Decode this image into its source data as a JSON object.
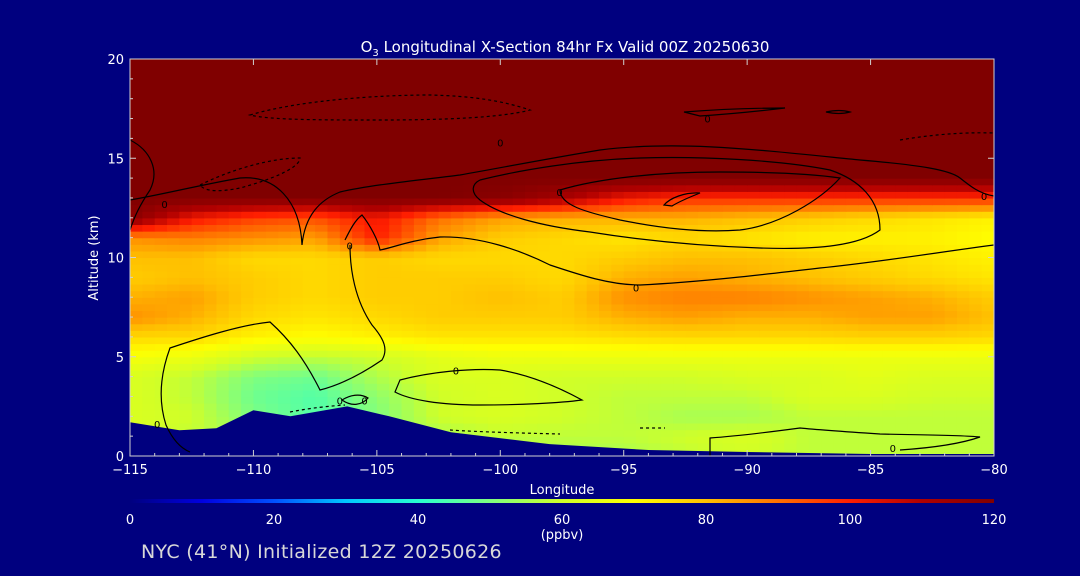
{
  "chart_data": {
    "type": "heatmap",
    "title_prefix": "O",
    "title_subscript": "3",
    "title_rest": " Longitudinal X-Section 84hr  Fx Valid 00Z 20250630",
    "xlabel": "Longitude",
    "ylabel": "Altitude (km)",
    "xlim": [
      -115,
      -80
    ],
    "ylim": [
      0,
      20
    ],
    "x_ticks": [
      -115,
      -110,
      -105,
      -100,
      -95,
      -90,
      -85,
      -80
    ],
    "x_tick_labels": [
      "−115",
      "−110",
      "−105",
      "−100",
      "−95",
      "−90",
      "−85",
      "−80"
    ],
    "y_ticks": [
      0,
      5,
      10,
      15,
      20
    ],
    "y_tick_labels": [
      "0",
      "5",
      "10",
      "15",
      "20"
    ],
    "grid": false,
    "colorbar": {
      "min": 0,
      "max": 120,
      "ticks": [
        0,
        20,
        40,
        60,
        80,
        100,
        120
      ],
      "tick_labels": [
        "0",
        "20",
        "40",
        "60",
        "80",
        "100",
        "120"
      ],
      "unit": "(ppbv)",
      "colors": [
        "#00007f",
        "#0000e0",
        "#0050ff",
        "#00c8ff",
        "#28ffd0",
        "#7fff7f",
        "#d0ff28",
        "#ffff00",
        "#ffc000",
        "#ff7000",
        "#ff1e00",
        "#b00000",
        "#800000"
      ]
    },
    "contour_labels": [
      {
        "text": "0",
        "x": -113.6,
        "y": 12.7
      },
      {
        "text": "0",
        "x": -113.9,
        "y": 1.6
      },
      {
        "text": "0",
        "x": -106.1,
        "y": 10.6
      },
      {
        "text": "0",
        "x": -106.5,
        "y": 2.8
      },
      {
        "text": "0",
        "x": -105.5,
        "y": 2.8
      },
      {
        "text": "0",
        "x": -101.8,
        "y": 4.3
      },
      {
        "text": "0",
        "x": -100.0,
        "y": 15.8
      },
      {
        "text": "0",
        "x": -97.6,
        "y": 13.3
      },
      {
        "text": "0",
        "x": -94.5,
        "y": 8.5
      },
      {
        "text": "0",
        "x": -91.6,
        "y": 17.0
      },
      {
        "text": "0",
        "x": -84.1,
        "y": 0.4
      },
      {
        "text": "0",
        "x": -80.4,
        "y": 13.1
      }
    ],
    "ozone_field": {
      "lon": [
        -115,
        -112.5,
        -110,
        -107.5,
        -105,
        -102.5,
        -100,
        -97.5,
        -95,
        -92.5,
        -90,
        -87.5,
        -85,
        -82.5,
        -80
      ],
      "alt": [
        0,
        1,
        2,
        3,
        4,
        5,
        6,
        7,
        8,
        9,
        10,
        11,
        12,
        13,
        14,
        15,
        16,
        17,
        18,
        19,
        20
      ],
      "values_ppbv": [
        [
          62,
          60,
          60,
          62,
          58,
          56,
          55,
          55,
          55,
          58,
          60,
          58,
          58,
          58,
          58
        ],
        [
          62,
          58,
          55,
          52,
          54,
          55,
          58,
          58,
          58,
          60,
          62,
          58,
          58,
          58,
          58
        ],
        [
          62,
          60,
          50,
          45,
          50,
          60,
          62,
          60,
          58,
          55,
          55,
          58,
          58,
          58,
          58
        ],
        [
          62,
          58,
          48,
          45,
          52,
          60,
          62,
          60,
          58,
          58,
          58,
          62,
          62,
          60,
          60
        ],
        [
          62,
          58,
          50,
          48,
          56,
          62,
          62,
          60,
          60,
          60,
          62,
          62,
          64,
          62,
          62
        ],
        [
          68,
          66,
          60,
          58,
          60,
          64,
          66,
          66,
          66,
          66,
          66,
          66,
          66,
          66,
          66
        ],
        [
          76,
          76,
          72,
          70,
          72,
          74,
          74,
          74,
          75,
          76,
          76,
          76,
          77,
          77,
          76
        ],
        [
          86,
          82,
          76,
          74,
          76,
          78,
          78,
          78,
          82,
          84,
          82,
          82,
          84,
          84,
          80
        ],
        [
          82,
          84,
          78,
          76,
          78,
          78,
          80,
          78,
          86,
          88,
          88,
          86,
          84,
          82,
          78
        ],
        [
          78,
          80,
          78,
          76,
          78,
          78,
          78,
          76,
          82,
          84,
          82,
          80,
          78,
          76,
          74
        ],
        [
          80,
          80,
          76,
          76,
          78,
          76,
          76,
          76,
          78,
          80,
          80,
          78,
          76,
          74,
          72
        ],
        [
          86,
          88,
          86,
          84,
          100,
          84,
          78,
          76,
          74,
          76,
          74,
          72,
          72,
          72,
          70
        ],
        [
          118,
          102,
          96,
          94,
          102,
          90,
          84,
          82,
          82,
          82,
          80,
          78,
          76,
          74,
          72
        ],
        [
          120,
          120,
          120,
          120,
          120,
          120,
          118,
          112,
          102,
          98,
          98,
          98,
          98,
          98,
          98
        ],
        [
          120,
          120,
          120,
          120,
          120,
          120,
          120,
          120,
          120,
          120,
          120,
          120,
          120,
          120,
          120
        ],
        [
          120,
          120,
          120,
          120,
          120,
          120,
          120,
          120,
          120,
          120,
          120,
          120,
          120,
          120,
          120
        ],
        [
          120,
          120,
          120,
          120,
          120,
          120,
          120,
          120,
          120,
          120,
          120,
          120,
          120,
          120,
          120
        ],
        [
          120,
          120,
          120,
          120,
          120,
          120,
          120,
          120,
          120,
          120,
          120,
          120,
          120,
          120,
          120
        ],
        [
          120,
          120,
          120,
          120,
          120,
          120,
          120,
          120,
          120,
          120,
          120,
          120,
          120,
          120,
          120
        ],
        [
          120,
          120,
          120,
          120,
          120,
          120,
          120,
          120,
          120,
          120,
          120,
          120,
          120,
          120,
          120
        ],
        [
          120,
          120,
          120,
          120,
          120,
          120,
          120,
          120,
          120,
          120,
          120,
          120,
          120,
          120,
          120
        ]
      ]
    },
    "terrain_altitude_km": [
      {
        "lon": -115,
        "alt": 1.7
      },
      {
        "lon": -113,
        "alt": 1.3
      },
      {
        "lon": -111.5,
        "alt": 1.4
      },
      {
        "lon": -110,
        "alt": 2.3
      },
      {
        "lon": -108.5,
        "alt": 2.0
      },
      {
        "lon": -106.2,
        "alt": 2.5
      },
      {
        "lon": -104.5,
        "alt": 2.0
      },
      {
        "lon": -102,
        "alt": 1.2
      },
      {
        "lon": -98,
        "alt": 0.6
      },
      {
        "lon": -94,
        "alt": 0.3
      },
      {
        "lon": -90,
        "alt": 0.2
      },
      {
        "lon": -85,
        "alt": 0.1
      },
      {
        "lon": -80,
        "alt": 0.1
      }
    ]
  },
  "footer": {
    "text": "NYC (41°N) Initialized 12Z 20250626"
  }
}
